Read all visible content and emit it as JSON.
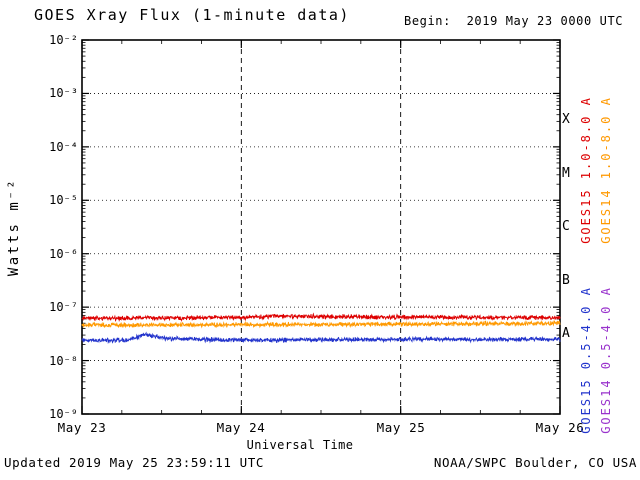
{
  "header": {
    "title": "GOES Xray Flux (1-minute data)",
    "begin": "Begin:  2019 May 23 0000 UTC"
  },
  "footer": {
    "updated": "Updated 2019 May 25 23:59:11 UTC",
    "credit": "NOAA/SWPC Boulder, CO USA"
  },
  "chart_data": {
    "type": "line",
    "title": "GOES Xray Flux (1-minute data)",
    "xlabel": "Universal Time",
    "ylabel": "Watts m⁻²",
    "x_range_days": [
      0,
      3
    ],
    "x_tick_labels": [
      "May 23",
      "May 24",
      "May 25",
      "May 26"
    ],
    "y_scale": "log10",
    "ylim": [
      1e-09,
      0.01
    ],
    "ylim_exponents": [
      -9,
      -2
    ],
    "y_tick_labels": [
      "10⁻²",
      "10⁻³",
      "10⁻⁴",
      "10⁻⁵",
      "10⁻⁶",
      "10⁻⁷",
      "10⁻⁸",
      "10⁻⁹"
    ],
    "flux_class_labels": [
      "X",
      "M",
      "C",
      "B",
      "A"
    ],
    "grid": {
      "horizontal": "dotted black line at each decade",
      "vertical": "dashed black line at each interior day boundary"
    },
    "legend_position": "right margin, rotated 90deg",
    "noise_log10_amplitude": 0.05,
    "series": [
      {
        "name": "GOES15 1.0-8.0 A",
        "color": "#dd0000",
        "plotted": true,
        "approx_flux_w_m2": 6.4e-08,
        "keyframes_days_flux": [
          [
            0,
            6.2e-08
          ],
          [
            1,
            6.4e-08
          ],
          [
            1.2,
            6.8e-08
          ],
          [
            2,
            6.5e-08
          ],
          [
            3,
            6.3e-08
          ]
        ]
      },
      {
        "name": "GOES14 1.0-8.0 A",
        "color": "#ff9900",
        "plotted": true,
        "approx_flux_w_m2": 4.8e-08,
        "keyframes_days_flux": [
          [
            0,
            4.6e-08
          ],
          [
            1,
            4.7e-08
          ],
          [
            2,
            4.8e-08
          ],
          [
            3,
            5e-08
          ]
        ]
      },
      {
        "name": "GOES15 0.5-4.0 A",
        "color": "#2233cc",
        "plotted": true,
        "approx_flux_w_m2": 2.5e-08,
        "keyframes_days_flux": [
          [
            0,
            2.4e-08
          ],
          [
            0.28,
            2.4e-08
          ],
          [
            0.4,
            3.1e-08
          ],
          [
            0.52,
            2.6e-08
          ],
          [
            1,
            2.4e-08
          ],
          [
            2,
            2.5e-08
          ],
          [
            3,
            2.5e-08
          ]
        ]
      },
      {
        "name": "GOES14 0.5-4.0 A",
        "color": "#9933cc",
        "plotted": false,
        "keyframes_days_flux": []
      }
    ]
  }
}
